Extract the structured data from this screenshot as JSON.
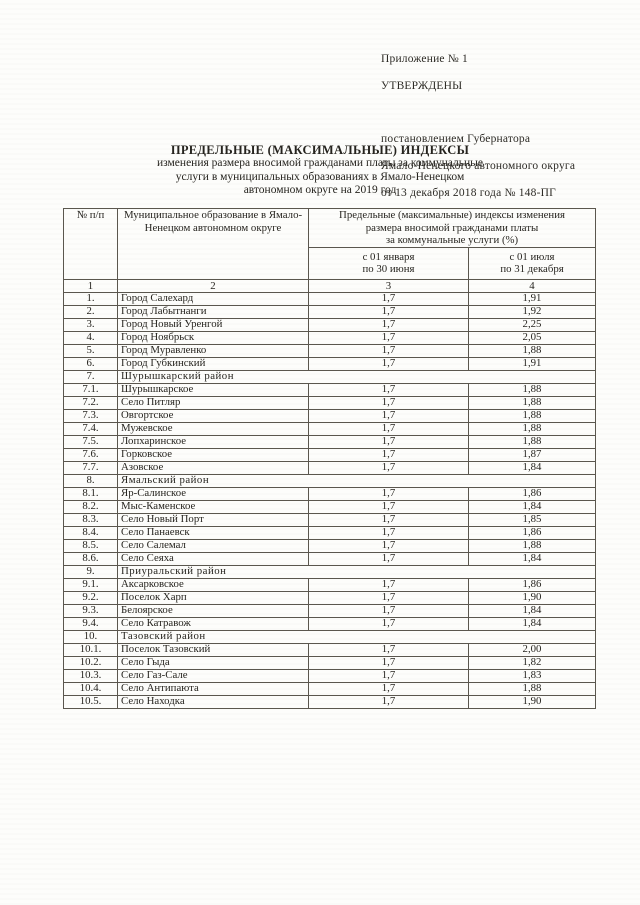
{
  "approval": {
    "line1": "Приложение № 1",
    "line2": "УТВЕРЖДЕНЫ",
    "line3": "постановлением Губернатора",
    "line4": "Ямало-Ненецкого автономного округа",
    "line5": "от 13 декабря 2018 года № 148-ПГ"
  },
  "title": {
    "line1": "ПРЕДЕЛЬНЫЕ (МАКСИМАЛЬНЫЕ) ИНДЕКСЫ",
    "line2": "изменения размера вносимой гражданами платы за коммунальные",
    "line3": "услуги в муниципальных образованиях в Ямало-Ненецком",
    "line4": "автономном округе на 2019 год"
  },
  "table": {
    "headers": {
      "col_num": "№ п/п",
      "col_name": "Муниципальное образование в Ямало-Ненецком автономном округе",
      "group": "Предельные (максимальные) индексы изменения\nразмера вносимой гражданами платы\nза коммунальные услуги (%)",
      "period1": "с 01 января\nпо 30 июня",
      "period2": "с 01 июля\nпо 31 декабря"
    },
    "number_row": [
      "1",
      "2",
      "3",
      "4"
    ],
    "rows": [
      {
        "n": "1.",
        "name": "Город Салехард",
        "v1": "1,7",
        "v2": "1,91",
        "section": false
      },
      {
        "n": "2.",
        "name": "Город Лабытнанги",
        "v1": "1,7",
        "v2": "1,92",
        "section": false
      },
      {
        "n": "3.",
        "name": "Город Новый Уренгой",
        "v1": "1,7",
        "v2": "2,25",
        "section": false
      },
      {
        "n": "4.",
        "name": "Город Ноябрьск",
        "v1": "1,7",
        "v2": "2,05",
        "section": false
      },
      {
        "n": "5.",
        "name": "Город Муравленко",
        "v1": "1,7",
        "v2": "1,88",
        "section": false
      },
      {
        "n": "6.",
        "name": "Город Губкинский",
        "v1": "1,7",
        "v2": "1,91",
        "section": false
      },
      {
        "n": "7.",
        "name": "Шурышкарский район",
        "v1": "",
        "v2": "",
        "section": true
      },
      {
        "n": "7.1.",
        "name": "Шурышкарское",
        "v1": "1,7",
        "v2": "1,88",
        "section": false
      },
      {
        "n": "7.2.",
        "name": "Село Питляр",
        "v1": "1,7",
        "v2": "1,88",
        "section": false
      },
      {
        "n": "7.3.",
        "name": "Овгортское",
        "v1": "1,7",
        "v2": "1,88",
        "section": false
      },
      {
        "n": "7.4.",
        "name": "Мужевское",
        "v1": "1,7",
        "v2": "1,88",
        "section": false
      },
      {
        "n": "7.5.",
        "name": "Лопхаринское",
        "v1": "1,7",
        "v2": "1,88",
        "section": false
      },
      {
        "n": "7.6.",
        "name": "Горковское",
        "v1": "1,7",
        "v2": "1,87",
        "section": false
      },
      {
        "n": "7.7.",
        "name": "Азовское",
        "v1": "1,7",
        "v2": "1,84",
        "section": false
      },
      {
        "n": "8.",
        "name": "Ямальский район",
        "v1": "",
        "v2": "",
        "section": true
      },
      {
        "n": "8.1.",
        "name": "Яр-Салинское",
        "v1": "1,7",
        "v2": "1,86",
        "section": false
      },
      {
        "n": "8.2.",
        "name": "Мыс-Каменское",
        "v1": "1,7",
        "v2": "1,84",
        "section": false
      },
      {
        "n": "8.3.",
        "name": "Село Новый Порт",
        "v1": "1,7",
        "v2": "1,85",
        "section": false
      },
      {
        "n": "8.4.",
        "name": "Село Панаевск",
        "v1": "1,7",
        "v2": "1,86",
        "section": false
      },
      {
        "n": "8.5.",
        "name": "Село Салемал",
        "v1": "1,7",
        "v2": "1,88",
        "section": false
      },
      {
        "n": "8.6.",
        "name": "Село Сеяха",
        "v1": "1,7",
        "v2": "1,84",
        "section": false
      },
      {
        "n": "9.",
        "name": "Приуральский район",
        "v1": "",
        "v2": "",
        "section": true
      },
      {
        "n": "9.1.",
        "name": "Аксарковское",
        "v1": "1,7",
        "v2": "1,86",
        "section": false
      },
      {
        "n": "9.2.",
        "name": "Поселок Харп",
        "v1": "1,7",
        "v2": "1,90",
        "section": false
      },
      {
        "n": "9.3.",
        "name": "Белоярское",
        "v1": "1,7",
        "v2": "1,84",
        "section": false
      },
      {
        "n": "9.4.",
        "name": "Село Катравож",
        "v1": "1,7",
        "v2": "1,84",
        "section": false
      },
      {
        "n": "10.",
        "name": "Тазовский район",
        "v1": "",
        "v2": "",
        "section": true
      },
      {
        "n": "10.1.",
        "name": "Поселок Тазовский",
        "v1": "1,7",
        "v2": "2,00",
        "section": false
      },
      {
        "n": "10.2.",
        "name": "Село Гыда",
        "v1": "1,7",
        "v2": "1,82",
        "section": false
      },
      {
        "n": "10.3.",
        "name": "Село Газ-Сале",
        "v1": "1,7",
        "v2": "1,83",
        "section": false
      },
      {
        "n": "10.4.",
        "name": "Село Антипаюта",
        "v1": "1,7",
        "v2": "1,88",
        "section": false
      },
      {
        "n": "10.5.",
        "name": "Село Находка",
        "v1": "1,7",
        "v2": "1,90",
        "section": false
      }
    ]
  }
}
